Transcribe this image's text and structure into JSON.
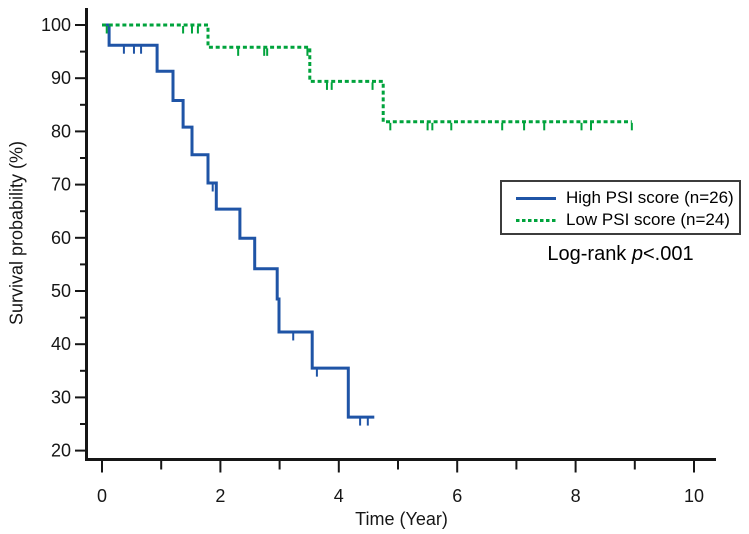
{
  "figure": {
    "background": "#ffffff",
    "axis_color": "#161616"
  },
  "chart_data": {
    "type": "line",
    "subtype": "kaplan_meier_step_curve",
    "title": "",
    "xlabel": "Time (Year)",
    "ylabel": "Survival probability (%)",
    "xlim": [
      0,
      10.4
    ],
    "ylim": [
      18,
      102
    ],
    "grid": false,
    "legend_position": "middle-right",
    "x_major_ticks": [
      0,
      2,
      4,
      6,
      8,
      10
    ],
    "x_minor_ticks": [
      1,
      3,
      5,
      7,
      9
    ],
    "y_major_ticks": [
      20,
      30,
      40,
      50,
      60,
      70,
      80,
      90,
      100
    ],
    "y_minor_ticks": [
      25,
      35,
      45,
      55,
      65,
      75,
      85,
      95
    ],
    "series": [
      {
        "name": "High PSI score (n=26)",
        "color": "#1F54A6",
        "style": "solid",
        "steps": [
          [
            0,
            100
          ],
          [
            0.12,
            96.2
          ],
          [
            0.93,
            91.3
          ],
          [
            1.2,
            85.8
          ],
          [
            1.37,
            80.8
          ],
          [
            1.52,
            75.6
          ],
          [
            1.79,
            70.3
          ],
          [
            1.93,
            65.4
          ],
          [
            2.33,
            59.9
          ],
          [
            2.58,
            54.2
          ],
          [
            2.96,
            48.5
          ],
          [
            2.99,
            42.3
          ],
          [
            3.55,
            35.5
          ],
          [
            4.16,
            26.3
          ]
        ],
        "end_time": 4.6,
        "censor_marks": [
          [
            0.37,
            96.2
          ],
          [
            0.54,
            96.2
          ],
          [
            0.66,
            96.2
          ],
          [
            1.87,
            70.3
          ],
          [
            3.23,
            42.3
          ],
          [
            3.63,
            35.5
          ],
          [
            4.36,
            26.3
          ],
          [
            4.49,
            26.3
          ]
        ]
      },
      {
        "name": "Low PSI score (n=24)",
        "color": "#00A33C",
        "style": "dashed",
        "steps": [
          [
            0,
            100
          ],
          [
            1.79,
            95.8
          ],
          [
            3.51,
            89.4
          ],
          [
            4.75,
            81.8
          ]
        ],
        "end_time": 8.95,
        "censor_marks": [
          [
            0.08,
            100
          ],
          [
            1.37,
            100
          ],
          [
            1.52,
            100
          ],
          [
            1.62,
            100
          ],
          [
            2.3,
            95.8
          ],
          [
            2.74,
            95.8
          ],
          [
            2.79,
            95.8
          ],
          [
            3.47,
            95.8
          ],
          [
            3.8,
            89.4
          ],
          [
            3.88,
            89.4
          ],
          [
            4.57,
            89.4
          ],
          [
            4.87,
            81.8
          ],
          [
            5.5,
            81.8
          ],
          [
            5.58,
            81.8
          ],
          [
            5.9,
            81.8
          ],
          [
            6.76,
            81.8
          ],
          [
            7.13,
            81.8
          ],
          [
            7.47,
            81.8
          ],
          [
            8.1,
            81.8
          ],
          [
            8.26,
            81.8
          ],
          [
            8.95,
            81.8
          ]
        ]
      }
    ],
    "annotation": {
      "prefix": "Log-rank ",
      "stat_symbol": "p",
      "value": "<.001"
    }
  }
}
